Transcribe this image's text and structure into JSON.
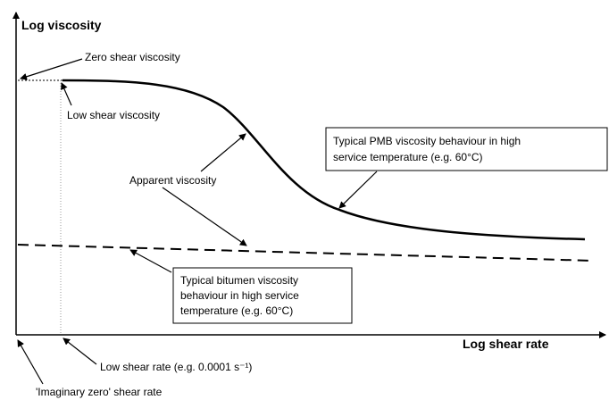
{
  "axes": {
    "y_label": "Log viscosity",
    "x_label": "Log shear rate"
  },
  "annotations": {
    "zero_shear_viscosity": "Zero shear viscosity",
    "low_shear_viscosity": "Low shear viscosity",
    "apparent_viscosity": "Apparent viscosity",
    "low_shear_rate": "Low shear rate (e.g. 0.0001 s⁻¹)",
    "imaginary_zero": "'Imaginary zero' shear rate"
  },
  "pmb_box": {
    "lines": [
      "Typical PMB viscosity behaviour in high",
      "service temperature (e.g. 60°C)"
    ]
  },
  "bitumen_box": {
    "lines": [
      "Typical bitumen viscosity",
      "behaviour in high service",
      "temperature (e.g. 60°C)"
    ]
  }
}
